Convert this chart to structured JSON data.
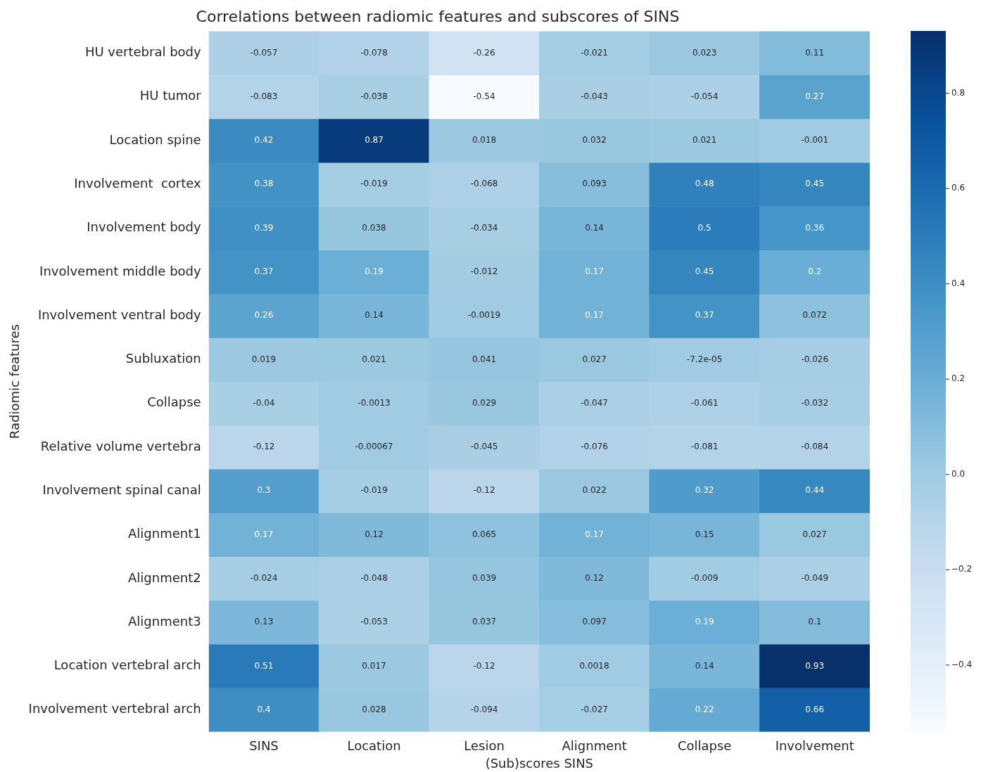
{
  "chart_data": {
    "type": "heatmap",
    "title": "Correlations between radiomic features and subscores of SINS",
    "xlabel": "(Sub)scores SINS",
    "ylabel": "Radiomic features",
    "categories": [
      "SINS",
      "Location",
      "Lesion",
      "Alignment",
      "Collapse",
      "Involvement"
    ],
    "y_categories": [
      "HU vertebral body",
      "HU tumor",
      "Location spine",
      "Involvement  cortex",
      "Involvement body",
      "Involvement middle body",
      "Involvement ventral body",
      "Subluxation",
      "Collapse",
      "Relative volume vertebra",
      "Involvement spinal canal",
      "Alignment1",
      "Alignment2",
      "Alignment3",
      "Location vertebral arch",
      "Involvement vertebral arch"
    ],
    "cells": [
      [
        -0.057,
        -0.078,
        -0.26,
        -0.021,
        0.023,
        0.11
      ],
      [
        -0.083,
        -0.038,
        -0.54,
        -0.043,
        -0.054,
        0.27
      ],
      [
        0.42,
        0.87,
        0.018,
        0.032,
        0.021,
        -0.001
      ],
      [
        0.38,
        -0.019,
        -0.068,
        0.093,
        0.48,
        0.45
      ],
      [
        0.39,
        0.038,
        -0.034,
        0.14,
        0.5,
        0.36
      ],
      [
        0.37,
        0.19,
        -0.012,
        0.17,
        0.45,
        0.2
      ],
      [
        0.26,
        0.14,
        -0.0019,
        0.17,
        0.37,
        0.072
      ],
      [
        0.019,
        0.021,
        0.041,
        0.027,
        -7.2e-05,
        -0.026
      ],
      [
        -0.04,
        -0.0013,
        0.029,
        -0.047,
        -0.061,
        -0.032
      ],
      [
        -0.12,
        -0.00067,
        -0.045,
        -0.076,
        -0.081,
        -0.084
      ],
      [
        0.3,
        -0.019,
        -0.12,
        0.022,
        0.32,
        0.44
      ],
      [
        0.17,
        0.12,
        0.065,
        0.17,
        0.15,
        0.027
      ],
      [
        -0.024,
        -0.048,
        0.039,
        0.12,
        -0.009,
        -0.049
      ],
      [
        0.13,
        -0.053,
        0.037,
        0.097,
        0.19,
        0.1
      ],
      [
        0.51,
        0.017,
        -0.12,
        0.0018,
        0.14,
        0.93
      ],
      [
        0.4,
        0.028,
        -0.094,
        -0.027,
        0.22,
        0.66
      ]
    ],
    "cell_labels": [
      [
        "-0.057",
        "-0.078",
        "-0.26",
        "-0.021",
        "0.023",
        "0.11"
      ],
      [
        "-0.083",
        "-0.038",
        "-0.54",
        "-0.043",
        "-0.054",
        "0.27"
      ],
      [
        "0.42",
        "0.87",
        "0.018",
        "0.032",
        "0.021",
        "-0.001"
      ],
      [
        "0.38",
        "-0.019",
        "-0.068",
        "0.093",
        "0.48",
        "0.45"
      ],
      [
        "0.39",
        "0.038",
        "-0.034",
        "0.14",
        "0.5",
        "0.36"
      ],
      [
        "0.37",
        "0.19",
        "-0.012",
        "0.17",
        "0.45",
        "0.2"
      ],
      [
        "0.26",
        "0.14",
        "-0.0019",
        "0.17",
        "0.37",
        "0.072"
      ],
      [
        "0.019",
        "0.021",
        "0.041",
        "0.027",
        "-7.2e-05",
        "-0.026"
      ],
      [
        "-0.04",
        "-0.0013",
        "0.029",
        "-0.047",
        "-0.061",
        "-0.032"
      ],
      [
        "-0.12",
        "-0.00067",
        "-0.045",
        "-0.076",
        "-0.081",
        "-0.084"
      ],
      [
        "0.3",
        "-0.019",
        "-0.12",
        "0.022",
        "0.32",
        "0.44"
      ],
      [
        "0.17",
        "0.12",
        "0.065",
        "0.17",
        "0.15",
        "0.027"
      ],
      [
        "-0.024",
        "-0.048",
        "0.039",
        "0.12",
        "-0.009",
        "-0.049"
      ],
      [
        "0.13",
        "-0.053",
        "0.037",
        "0.097",
        "0.19",
        "0.1"
      ],
      [
        "0.51",
        "0.017",
        "-0.12",
        "0.0018",
        "0.14",
        "0.93"
      ],
      [
        "0.4",
        "0.028",
        "-0.094",
        "-0.027",
        "0.22",
        "0.66"
      ]
    ],
    "clim": [
      -0.54,
      0.93
    ],
    "cticks": [
      {
        "value": -0.4,
        "label": "−0.4"
      },
      {
        "value": -0.2,
        "label": "−0.2"
      },
      {
        "value": 0,
        "label": "0.0"
      },
      0.2,
      0.4,
      0.6,
      0.8
    ]
  }
}
